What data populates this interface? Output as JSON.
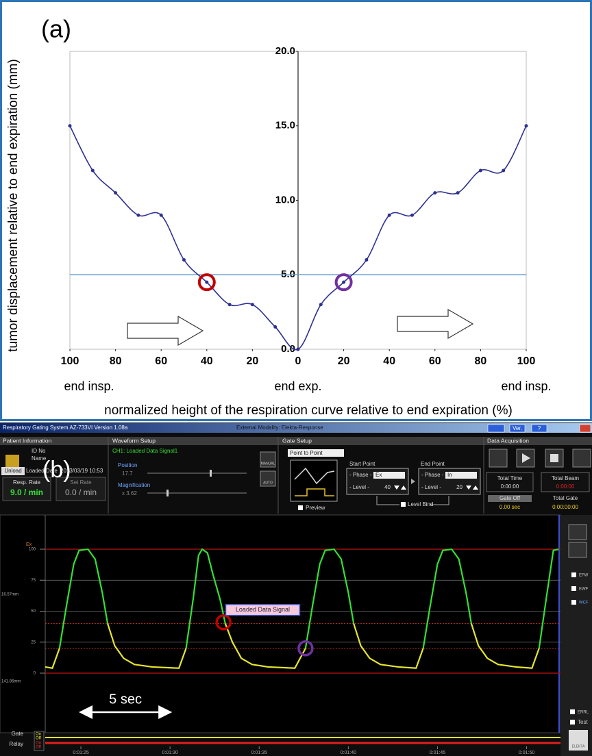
{
  "chart_data": [
    {
      "type": "line",
      "panel_label": "(a)",
      "y_label": "tumor displacement relative to end expiration (mm)",
      "x_label": "normalized height of the respiration curve relative to end expiration (%)",
      "x": [
        -100,
        -90,
        -80,
        -70,
        -60,
        -50,
        -40,
        -30,
        -20,
        -10,
        0,
        10,
        20,
        30,
        40,
        50,
        60,
        70,
        80,
        90,
        100
      ],
      "series": [
        {
          "color": "#2e3192",
          "values": [
            15,
            12,
            10.5,
            9,
            9,
            6,
            4.5,
            3,
            3,
            1.5,
            0,
            3,
            4.5,
            6,
            9,
            9,
            10.5,
            10.5,
            12,
            12,
            15
          ]
        }
      ],
      "smooth": true,
      "markers": true,
      "xlim": [
        -100,
        100
      ],
      "xticks": [
        {
          "value": -100,
          "label": "100"
        },
        {
          "value": -80,
          "label": "80"
        },
        {
          "value": -60,
          "label": "60"
        },
        {
          "value": -40,
          "label": "40"
        },
        {
          "value": -20,
          "label": "20"
        },
        0,
        20,
        40,
        60,
        80,
        100
      ],
      "ylim": [
        0,
        20
      ],
      "yticks": [
        {
          "value": 0,
          "label": "0.0"
        },
        {
          "value": 5,
          "label": "5.0"
        },
        {
          "value": 10,
          "label": "10.0"
        },
        {
          "value": 15,
          "label": "15.0"
        },
        {
          "value": 20,
          "label": "20.0"
        }
      ],
      "reference_line": {
        "value": 5,
        "color": "#5b9bd5"
      },
      "highlights": [
        {
          "x": -40,
          "y": 4.5,
          "color": "#c00000"
        },
        {
          "x": 20,
          "y": 4.5,
          "color": "#7030a0"
        }
      ],
      "annotations": [
        {
          "x": -100,
          "label": "end insp."
        },
        {
          "x": 0,
          "label": "end exp."
        },
        {
          "x": 100,
          "label": "end insp."
        }
      ]
    },
    {
      "type": "line",
      "panel_label": "(b)",
      "y_label": "Ex",
      "y_top_label": "16.57mm",
      "y_bottom_label": "141.86mm",
      "x": [
        83.0,
        83.4,
        83.8,
        84.2,
        84.6,
        84.9,
        85.4,
        85.8,
        86.2,
        86.5,
        86.9,
        87.4,
        88.0,
        89.0,
        90.5,
        90.9,
        91.3,
        91.6,
        91.8,
        92.1,
        92.4,
        92.8,
        93.1,
        93.5,
        94.0,
        94.6,
        95.5,
        97.0,
        97.6,
        98.0,
        98.4,
        98.7,
        99.2,
        99.6,
        100.0,
        100.3,
        100.7,
        101.2,
        101.8,
        102.8,
        103.8,
        104.2,
        104.6,
        105.0,
        105.3,
        105.8,
        106.2,
        106.6,
        106.9,
        107.3,
        107.8,
        108.4,
        109.4,
        110.3,
        110.7,
        111.1,
        111.5,
        111.8
      ],
      "series": [
        {
          "color": "#33e033",
          "values": [
            null,
            null,
            20,
            55,
            88,
            99,
            100,
            92,
            65,
            40,
            null,
            null,
            null,
            null,
            null,
            20,
            60,
            95,
            100,
            97,
            80,
            60,
            40,
            null,
            null,
            null,
            null,
            null,
            20,
            55,
            88,
            99,
            100,
            92,
            65,
            40,
            null,
            null,
            null,
            null,
            null,
            20,
            55,
            88,
            99,
            100,
            92,
            65,
            40,
            null,
            null,
            null,
            null,
            null,
            20,
            60,
            99,
            100
          ]
        },
        {
          "color": "#e6e62e",
          "values": [
            5,
            4,
            20,
            null,
            null,
            null,
            null,
            null,
            null,
            40,
            22,
            12,
            7,
            5,
            4,
            20,
            null,
            null,
            null,
            null,
            null,
            null,
            40,
            25,
            12,
            7,
            5,
            4,
            20,
            null,
            null,
            null,
            null,
            null,
            null,
            40,
            22,
            12,
            7,
            5,
            4,
            20,
            null,
            null,
            null,
            null,
            null,
            null,
            40,
            22,
            12,
            7,
            5,
            4,
            20,
            null,
            null,
            null
          ]
        }
      ],
      "xlim": [
        83,
        111.9
      ],
      "xticks": [
        {
          "value": 85,
          "label": "0:01:25"
        },
        {
          "value": 90,
          "label": "0:01:30"
        },
        {
          "value": 95,
          "label": "0:01:35"
        },
        {
          "value": 100,
          "label": "0:01:40"
        },
        {
          "value": 105,
          "label": "0:01:45"
        },
        {
          "value": 110,
          "label": "0:01:50"
        }
      ],
      "ylim": [
        0,
        100
      ],
      "yticks": [
        0,
        25,
        50,
        75,
        100
      ],
      "grid": true,
      "limit_color": "#a01010",
      "highlights": [
        {
          "x": 93.0,
          "y": 41,
          "color": "#c00000"
        },
        {
          "x": 97.6,
          "y": 20,
          "color": "#7030a0"
        }
      ],
      "callout": {
        "label": "Loaded Data Signal",
        "x": 95.2,
        "y": 51
      },
      "scale_bar": {
        "label": "5 sec",
        "x": [
          85,
          90
        ]
      }
    }
  ],
  "ui": {
    "title": "Respiratory Gating System AZ-733VI Version  1.08a",
    "modality": "External Modality:  Elekta-Response",
    "ver": "Ver.",
    "help": "?",
    "sections": [
      "Patient Information",
      "Waveform Setup",
      "Gate Setup",
      "Data Acquisition"
    ],
    "patient": {
      "id": "ID No",
      "name": "Name",
      "unload": "Unload",
      "loaded": "Loaded Date",
      "date": "2013/03/19  10:53",
      "resp_rate": "Resp. Rate",
      "resp_value": "9.0 / min",
      "set_rate": "Set Rate",
      "set_value": "0.0 / min"
    },
    "waveform": {
      "channel": "CH1: Loaded Data Signal1",
      "position": "Position",
      "position_value": "17.7",
      "magnification": "Magnification",
      "magnification_value": "x 3.62",
      "manual": "MANUAL",
      "auto": "AUTO"
    },
    "gate": {
      "mode": "Point to Point",
      "start": "Start Point",
      "end": "End Point",
      "phase": "- Phase -",
      "start_phase": "Ex",
      "end_phase": "In",
      "level": "- Level -",
      "start_level": 40,
      "end_level": 20,
      "bind": "Level Bind",
      "preview": "Preview"
    },
    "acq": {
      "total_time": "Total Time",
      "total_time_value": "0:00:00",
      "total_beam": "Total Beam",
      "total_beam_value": "0:00:00",
      "gate_off": "Gate Off",
      "gate_off_value": "0.00 sec",
      "total_gate": "Total Gate",
      "total_gate_value": "0:00:00:00"
    },
    "side": [
      "EFW",
      "EWF",
      "WCF"
    ],
    "errl": "ERRL",
    "test": "Test",
    "logo": "ELEKTA",
    "gate_strip": {
      "labels": [
        "Gate",
        "Relay"
      ],
      "states": [
        "On",
        "Off",
        "On",
        "Off"
      ]
    }
  }
}
